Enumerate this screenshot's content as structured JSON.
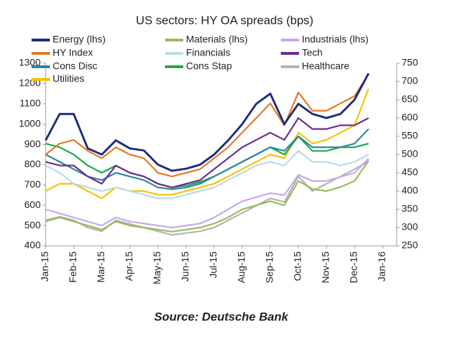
{
  "chart_data": {
    "type": "line",
    "title": "US sectors: HY OA spreads (bps)",
    "source": "Source: Deutsche Bank",
    "x": [
      0,
      0.5,
      1,
      1.5,
      2,
      2.5,
      3,
      3.5,
      4,
      4.5,
      5,
      5.5,
      6,
      6.5,
      7,
      7.5,
      8,
      8.5,
      9,
      9.5,
      10,
      10.5,
      11,
      11.5
    ],
    "xlim": [
      0,
      12
    ],
    "xticks": [
      {
        "value": 0,
        "label": "Jan-15"
      },
      {
        "value": 1,
        "label": "Feb-15"
      },
      {
        "value": 2,
        "label": "Mar-15"
      },
      {
        "value": 3,
        "label": "Apr-15"
      },
      {
        "value": 4,
        "label": "May-15"
      },
      {
        "value": 5,
        "label": "Jun-15"
      },
      {
        "value": 6,
        "label": "Jul-15"
      },
      {
        "value": 7,
        "label": "Aug-15"
      },
      {
        "value": 8,
        "label": "Sep-15"
      },
      {
        "value": 9,
        "label": "Oct-15"
      },
      {
        "value": 10,
        "label": "Nov-15"
      },
      {
        "value": 11,
        "label": "Dec-15"
      },
      {
        "value": 12,
        "label": "Jan-16"
      }
    ],
    "ylim": [
      400,
      1300
    ],
    "yticks": [
      400,
      500,
      600,
      700,
      800,
      900,
      1000,
      1100,
      1200,
      1300
    ],
    "y2lim": [
      250,
      750
    ],
    "y2ticks": [
      250,
      300,
      350,
      400,
      450,
      500,
      550,
      600,
      650,
      700,
      750
    ],
    "series": [
      {
        "name": "Energy (lhs)",
        "color": "#1f2d7a",
        "values": [
          920,
          1050,
          1050,
          880,
          850,
          920,
          880,
          870,
          800,
          770,
          780,
          800,
          850,
          920,
          1000,
          1100,
          1150,
          1000,
          1100,
          1050,
          1030,
          1050,
          1120,
          1250
        ]
      },
      {
        "name": "Materials (lhs)",
        "color": "#9bbb59",
        "values": [
          520,
          540,
          520,
          500,
          480,
          520,
          500,
          490,
          480,
          470,
          480,
          490,
          510,
          540,
          580,
          600,
          620,
          600,
          720,
          680,
          670,
          690,
          720,
          820
        ]
      },
      {
        "name": "Industrials (lhs)",
        "color": "#c9a6f0",
        "values": [
          580,
          560,
          540,
          520,
          500,
          540,
          520,
          510,
          500,
          490,
          500,
          510,
          540,
          580,
          620,
          640,
          660,
          650,
          750,
          720,
          720,
          740,
          760,
          830
        ]
      },
      {
        "name": "HY Index",
        "color": "#e87722",
        "axis": "y2",
        "values": [
          500,
          530,
          540,
          510,
          490,
          520,
          500,
          490,
          450,
          440,
          450,
          460,
          490,
          520,
          560,
          600,
          640,
          580,
          670,
          620,
          620,
          640,
          660,
          720
        ]
      },
      {
        "name": "Financials",
        "color": "#b7dcea",
        "axis": "y2",
        "values": [
          470,
          450,
          420,
          410,
          400,
          410,
          400,
          390,
          380,
          380,
          390,
          400,
          410,
          430,
          450,
          470,
          480,
          470,
          510,
          480,
          480,
          470,
          480,
          500
        ]
      },
      {
        "name": "Tech",
        "color": "#6a2c91",
        "axis": "y2",
        "values": [
          480,
          470,
          470,
          440,
          420,
          470,
          450,
          440,
          420,
          410,
          420,
          430,
          460,
          490,
          520,
          540,
          560,
          540,
          600,
          570,
          570,
          580,
          580,
          600
        ]
      },
      {
        "name": "Cons Disc",
        "color": "#31849b",
        "axis": "y2",
        "values": [
          500,
          480,
          460,
          440,
          430,
          450,
          440,
          430,
          410,
          405,
          410,
          420,
          440,
          460,
          480,
          500,
          520,
          510,
          550,
          520,
          520,
          520,
          530,
          570
        ]
      },
      {
        "name": "Cons Stap",
        "color": "#1aab4b",
        "axis": "y2",
        "values": [
          530,
          520,
          500,
          470,
          450,
          470,
          450,
          440,
          420,
          410,
          415,
          425,
          440,
          460,
          480,
          500,
          520,
          500,
          550,
          510,
          510,
          520,
          520,
          530
        ]
      },
      {
        "name": "Healthcare",
        "color": "#b3b3b3",
        "axis": "y2",
        "values": [
          320,
          330,
          320,
          300,
          290,
          320,
          310,
          300,
          290,
          280,
          285,
          290,
          300,
          320,
          340,
          360,
          380,
          370,
          440,
          400,
          420,
          440,
          460,
          480
        ]
      },
      {
        "name": "Utilities",
        "color": "#f5c400",
        "axis": "y2",
        "values": [
          400,
          420,
          420,
          400,
          380,
          410,
          400,
          400,
          390,
          390,
          400,
          410,
          420,
          440,
          460,
          480,
          500,
          490,
          560,
          530,
          540,
          560,
          580,
          680
        ]
      }
    ]
  }
}
